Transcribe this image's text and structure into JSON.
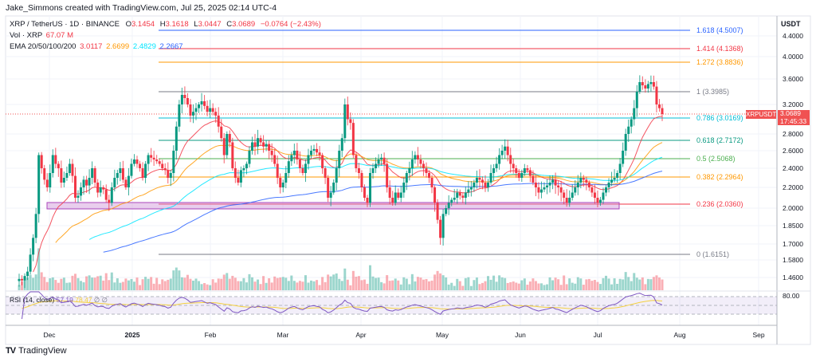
{
  "caption": "Jake_Simmons created with TradingView.com, Jul 25, 2025 02:14 UTC-4",
  "legend": {
    "symbol": "XRP / TetherUS · 1D · BINANCE",
    "ohlc": {
      "O_label": "O",
      "O": "3.1454",
      "H_label": "H",
      "H": "3.1618",
      "L_label": "L",
      "L": "3.0447",
      "C_label": "C",
      "C": "3.0689",
      "change": "−0.0764 (−2.43%)"
    },
    "volume_label": "Vol · XRP",
    "volume_value": "67.07 M",
    "ema_label": "EMA 20/50/100/200",
    "ema_values": [
      "3.0117",
      "2.6699",
      "2.4829",
      "2.2667"
    ],
    "ema_colors": [
      "#f23645",
      "#ff9800",
      "#00e5ff",
      "#2962ff"
    ]
  },
  "price_axis": {
    "currency": "USDT",
    "ticks": [
      {
        "label": "4.4000",
        "y": 45
      },
      {
        "label": "4.0000",
        "y": 71
      },
      {
        "label": "3.6000",
        "y": 99
      },
      {
        "label": "3.2000",
        "y": 131
      },
      {
        "label": "2.8000",
        "y": 168
      },
      {
        "label": "2.6000",
        "y": 189
      },
      {
        "label": "2.4000",
        "y": 211
      },
      {
        "label": "2.2000",
        "y": 235
      },
      {
        "label": "2.0000",
        "y": 261
      },
      {
        "label": "1.8500",
        "y": 283
      },
      {
        "label": "1.7000",
        "y": 306
      },
      {
        "label": "1.5800",
        "y": 326
      },
      {
        "label": "1.4600",
        "y": 348
      }
    ],
    "rsi_tick": {
      "label": "80.00",
      "y": 371
    }
  },
  "current_price": {
    "symbol": "XRPUSDT",
    "price": "3.0689",
    "countdown": "17:45:33",
    "color": "#f05252"
  },
  "fib_levels": [
    {
      "ratio": "1.618",
      "value": "4.5007",
      "label": "1.618 (4.5007)",
      "y": 38,
      "color": "#2962ff"
    },
    {
      "ratio": "1.414",
      "value": "4.1368",
      "label": "1.414 (4.1368)",
      "y": 61,
      "color": "#f23645"
    },
    {
      "ratio": "1.272",
      "value": "3.8836",
      "label": "1.272 (3.8836)",
      "y": 78,
      "color": "#ff9800"
    },
    {
      "ratio": "1",
      "value": "3.3985",
      "label": "1 (3.3985)",
      "y": 115,
      "color": "#787b86"
    },
    {
      "ratio": "0.786",
      "value": "3.0169",
      "label": "0.786 (3.0169)",
      "y": 148,
      "color": "#00bcd4"
    },
    {
      "ratio": "0.618",
      "value": "2.7172",
      "label": "0.618 (2.7172)",
      "y": 176,
      "color": "#089981"
    },
    {
      "ratio": "0.5",
      "value": "2.5068",
      "label": "0.5 (2.5068)",
      "y": 199,
      "color": "#4caf50"
    },
    {
      "ratio": "0.382",
      "value": "2.2964",
      "label": "0.382 (2.2964)",
      "y": 222,
      "color": "#ff9800"
    },
    {
      "ratio": "0.236",
      "value": "2.0360",
      "label": "0.236 (2.0360)",
      "y": 256,
      "color": "#f23645"
    },
    {
      "ratio": "0",
      "value": "1.6151",
      "label": "0 (1.6151)",
      "y": 319,
      "color": "#787b86"
    }
  ],
  "time_axis": [
    {
      "label": "Dec",
      "x": 62
    },
    {
      "label": "2025",
      "x": 166,
      "bold": true
    },
    {
      "label": "Feb",
      "x": 264
    },
    {
      "label": "Mar",
      "x": 355
    },
    {
      "label": "Apr",
      "x": 453
    },
    {
      "label": "May",
      "x": 555
    },
    {
      "label": "Jun",
      "x": 653
    },
    {
      "label": "Jul",
      "x": 750
    },
    {
      "label": "Aug",
      "x": 853
    },
    {
      "label": "Sep",
      "x": 952
    }
  ],
  "rsi": {
    "label": "RSI (14, close)",
    "value": "57.19",
    "ma_value": "78.47",
    "extra": "∅ ∅"
  },
  "footer": {
    "logo": "TV",
    "brand": "TradingView"
  },
  "chart_data": {
    "type": "candlestick",
    "title": "XRP / TetherUS · 1D · BINANCE",
    "xlabel": "",
    "ylabel": "USDT",
    "ylim": [
      1.42,
      4.55
    ],
    "categories": [
      "Dec",
      "2025",
      "Feb",
      "Mar",
      "Apr",
      "May",
      "Jun",
      "Jul",
      "Aug",
      "Sep"
    ],
    "candles_close_approx": [
      1.45,
      1.44,
      1.47,
      1.5,
      1.62,
      1.75,
      1.95,
      2.55,
      2.4,
      2.28,
      2.2,
      2.35,
      2.55,
      2.45,
      2.4,
      2.25,
      2.3,
      2.35,
      2.45,
      2.32,
      2.1,
      2.12,
      2.2,
      2.28,
      2.22,
      2.3,
      2.4,
      2.25,
      2.15,
      2.2,
      2.18,
      2.08,
      2.05,
      2.2,
      2.3,
      2.35,
      2.4,
      2.28,
      2.2,
      2.32,
      2.45,
      2.5,
      2.45,
      2.4,
      2.3,
      2.45,
      2.55,
      2.52,
      2.5,
      2.48,
      2.45,
      2.4,
      2.38,
      2.3,
      2.35,
      2.6,
      2.9,
      3.2,
      3.35,
      3.3,
      3.2,
      3.05,
      3.1,
      3.15,
      3.2,
      3.25,
      3.18,
      3.1,
      3.15,
      3.1,
      3.05,
      2.9,
      2.75,
      2.55,
      2.8,
      2.7,
      2.4,
      2.3,
      2.25,
      2.38,
      2.4,
      2.45,
      2.6,
      2.7,
      2.65,
      2.75,
      2.7,
      2.65,
      2.68,
      2.6,
      2.55,
      2.45,
      2.3,
      2.2,
      2.25,
      2.35,
      2.48,
      2.55,
      2.6,
      2.5,
      2.4,
      2.35,
      2.45,
      2.55,
      2.6,
      2.62,
      2.58,
      2.55,
      2.4,
      2.3,
      2.1,
      2.15,
      2.25,
      2.4,
      2.6,
      2.75,
      3.2,
      3.0,
      2.95,
      2.55,
      2.4,
      2.35,
      2.2,
      2.1,
      2.05,
      2.35,
      2.4,
      2.45,
      2.5,
      2.52,
      2.45,
      2.2,
      2.1,
      2.05,
      2.15,
      2.1,
      2.15,
      2.25,
      2.35,
      2.4,
      2.5,
      2.55,
      2.5,
      2.45,
      2.4,
      2.35,
      2.3,
      2.2,
      2.05,
      1.9,
      1.75,
      1.95,
      2.0,
      2.05,
      2.08,
      2.1,
      2.15,
      2.12,
      2.1,
      2.15,
      2.18,
      2.2,
      2.25,
      2.3,
      2.28,
      2.25,
      2.2,
      2.25,
      2.35,
      2.4,
      2.45,
      2.55,
      2.6,
      2.65,
      2.55,
      2.45,
      2.4,
      2.35,
      2.3,
      2.35,
      2.4,
      2.38,
      2.32,
      2.25,
      2.2,
      2.15,
      2.18,
      2.2,
      2.22,
      2.25,
      2.28,
      2.22,
      2.2,
      2.15,
      2.1,
      2.05,
      2.1,
      2.15,
      2.2,
      2.25,
      2.3,
      2.28,
      2.25,
      2.2,
      2.15,
      2.1,
      2.05,
      2.08,
      2.15,
      2.2,
      2.25,
      2.28,
      2.3,
      2.35,
      2.45,
      2.6,
      2.8,
      2.9,
      3.0,
      3.15,
      3.4,
      3.55,
      3.5,
      3.45,
      3.52,
      3.55,
      3.48,
      3.2,
      3.15,
      3.07
    ],
    "ema_last": {
      "EMA20": 3.0117,
      "EMA50": 2.6699,
      "EMA100": 2.4829,
      "EMA200": 2.2667
    },
    "volume_last": "67.07 M",
    "rsi_last": 57.19,
    "rsi_ma_last": 78.47
  }
}
